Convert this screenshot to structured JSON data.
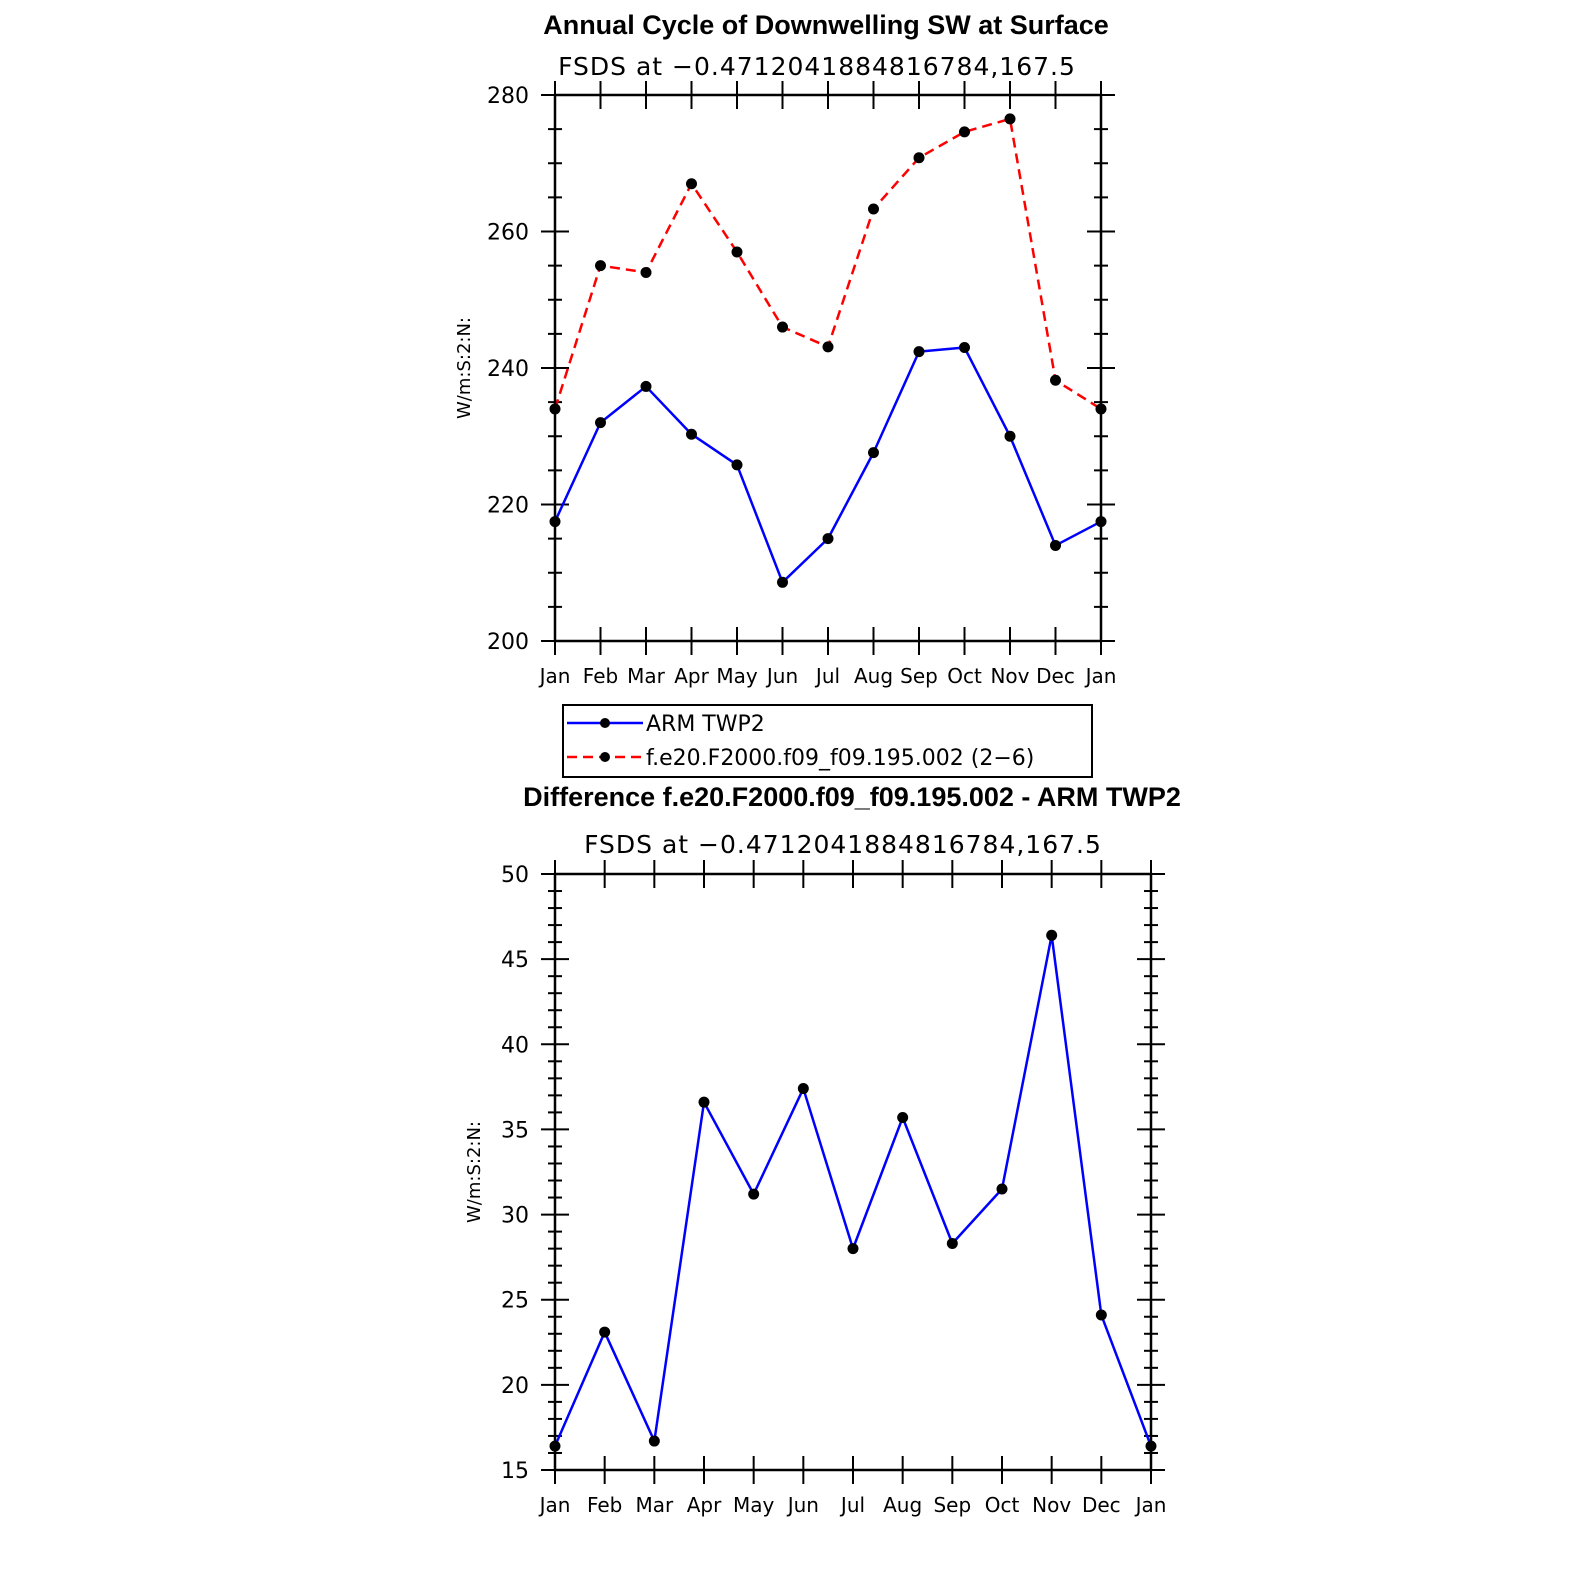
{
  "chart_data": [
    {
      "type": "line",
      "title": "Annual Cycle of Downwelling SW at Surface",
      "subtitle": "FSDS at −0.4712041884816784,167.5",
      "ylabel": "W/m:S:2:N:",
      "xlabel": "",
      "categories": [
        "Jan",
        "Feb",
        "Mar",
        "Apr",
        "May",
        "Jun",
        "Jul",
        "Aug",
        "Sep",
        "Oct",
        "Nov",
        "Dec",
        "Jan"
      ],
      "ylim": [
        200,
        280
      ],
      "yticks": [
        "200",
        "220",
        "240",
        "260",
        "280"
      ],
      "series": [
        {
          "name": "ARM TWP2",
          "color": "#0000ff",
          "dash": "solid",
          "values": [
            217.5,
            232,
            237.3,
            230.3,
            225.8,
            208.6,
            215,
            227.6,
            242.4,
            243,
            230,
            214,
            217.5
          ]
        },
        {
          "name": "f.e20.F2000.f09_f09.195.002 (2−6)",
          "color": "#ff0000",
          "dash": "dashed",
          "values": [
            234,
            255,
            254,
            267,
            257,
            246,
            243.1,
            263.3,
            270.8,
            274.6,
            276.5,
            238.2,
            234
          ]
        }
      ],
      "legend_position": "bottom"
    },
    {
      "type": "line",
      "title": "Difference f.e20.F2000.f09_f09.195.002 - ARM TWP2",
      "subtitle": "FSDS at −0.4712041884816784,167.5",
      "ylabel": "W/m:S:2:N:",
      "xlabel": "",
      "categories": [
        "Jan",
        "Feb",
        "Mar",
        "Apr",
        "May",
        "Jun",
        "Jul",
        "Aug",
        "Sep",
        "Oct",
        "Nov",
        "Dec",
        "Jan"
      ],
      "ylim": [
        15,
        50
      ],
      "yticks": [
        "15",
        "20",
        "25",
        "30",
        "35",
        "40",
        "45",
        "50"
      ],
      "series": [
        {
          "color": "#0000ff",
          "dash": "solid",
          "values": [
            16.4,
            23.1,
            16.7,
            36.6,
            31.2,
            37.4,
            28,
            35.7,
            28.3,
            31.5,
            46.4,
            24.1,
            16.4
          ]
        }
      ]
    }
  ]
}
